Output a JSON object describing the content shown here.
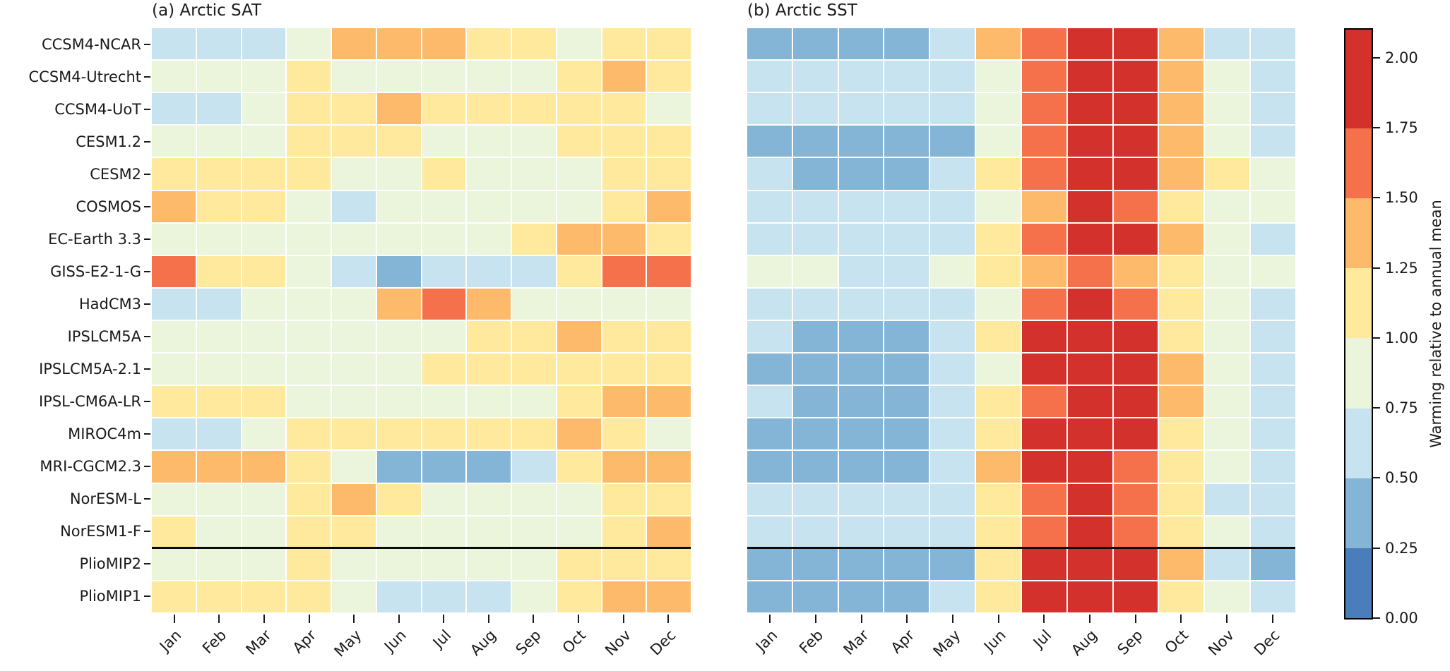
{
  "figure": {
    "panel_a_title": "(a) Arctic SAT",
    "panel_b_title": "(b) Arctic SST",
    "separator_after_row": 16,
    "separator_note": "horizontal black line separates individual models from PlioMIP2/PlioMIP1 ensemble-mean rows",
    "colorbar": {
      "label": "Warming relative to annual mean",
      "tick_labels": [
        "0.00",
        "0.25",
        "0.50",
        "0.75",
        "1.00",
        "1.25",
        "1.50",
        "1.75",
        "2.00"
      ],
      "vmin": 0.0,
      "vmax": 2.1,
      "bins": [
        {
          "max": 0.25,
          "color": "#4a7ebb"
        },
        {
          "max": 0.5,
          "color": "#84b5d7"
        },
        {
          "max": 0.75,
          "color": "#c6e3ef"
        },
        {
          "max": 1.0,
          "color": "#eaf5dc"
        },
        {
          "max": 1.25,
          "color": "#fee99d"
        },
        {
          "max": 1.5,
          "color": "#fdba6b"
        },
        {
          "max": 1.75,
          "color": "#f4714b"
        },
        {
          "max": 2.1,
          "color": "#d3312b"
        }
      ]
    }
  },
  "chart_data": [
    {
      "type": "heatmap",
      "title": "(a) Arctic SAT",
      "columns": [
        "Jan",
        "Feb",
        "Mar",
        "Apr",
        "May",
        "Jun",
        "Jul",
        "Aug",
        "Sep",
        "Oct",
        "Nov",
        "Dec"
      ],
      "rows": [
        "CCSM4-NCAR",
        "CCSM4-Utrecht",
        "CCSM4-UoT",
        "CESM1.2",
        "CESM2",
        "COSMOS",
        "EC-Earth 3.3",
        "GISS-E2-1-G",
        "HadCM3",
        "IPSLCM5A",
        "IPSLCM5A-2.1",
        "IPSL-CM6A-LR",
        "MIROC4m",
        "MRI-CGCM2.3",
        "NorESM-L",
        "NorESM1-F",
        "PlioMIP2",
        "PlioMIP1"
      ],
      "value_units": "warming relative to annual mean (discrete 0.25-wide color bins, bin-center estimates)",
      "values": [
        [
          0.6,
          0.6,
          0.6,
          0.9,
          1.4,
          1.4,
          1.4,
          1.1,
          1.1,
          0.9,
          1.1,
          1.1
        ],
        [
          0.9,
          0.9,
          0.9,
          1.1,
          0.9,
          0.9,
          0.9,
          0.9,
          0.9,
          1.1,
          1.4,
          1.1
        ],
        [
          0.6,
          0.6,
          0.9,
          1.1,
          1.1,
          1.4,
          1.1,
          1.1,
          1.1,
          1.1,
          1.1,
          0.9
        ],
        [
          0.9,
          0.9,
          0.9,
          1.1,
          1.1,
          1.1,
          0.9,
          0.9,
          0.9,
          1.1,
          1.1,
          1.1
        ],
        [
          1.1,
          1.1,
          1.1,
          1.1,
          0.9,
          0.9,
          1.1,
          0.9,
          0.9,
          0.9,
          1.1,
          1.1
        ],
        [
          1.4,
          1.1,
          1.1,
          0.9,
          0.6,
          0.9,
          0.9,
          0.9,
          0.9,
          0.9,
          1.1,
          1.4
        ],
        [
          0.9,
          0.9,
          0.9,
          0.9,
          0.9,
          0.9,
          0.9,
          0.9,
          1.1,
          1.4,
          1.4,
          1.1
        ],
        [
          1.6,
          1.1,
          1.1,
          0.9,
          0.6,
          0.4,
          0.6,
          0.6,
          0.6,
          1.1,
          1.6,
          1.6
        ],
        [
          0.6,
          0.6,
          0.9,
          0.9,
          0.9,
          1.4,
          1.6,
          1.4,
          0.9,
          0.9,
          0.9,
          0.9
        ],
        [
          0.9,
          0.9,
          0.9,
          0.9,
          0.9,
          0.9,
          0.9,
          1.1,
          1.1,
          1.4,
          1.1,
          1.1
        ],
        [
          0.9,
          0.9,
          0.9,
          0.9,
          0.9,
          0.9,
          1.1,
          1.1,
          1.1,
          1.1,
          1.1,
          1.1
        ],
        [
          1.1,
          1.1,
          1.1,
          0.9,
          0.9,
          0.9,
          0.9,
          0.9,
          0.9,
          1.1,
          1.4,
          1.4
        ],
        [
          0.6,
          0.6,
          0.9,
          1.1,
          1.1,
          1.1,
          1.1,
          1.1,
          1.1,
          1.4,
          1.1,
          0.9
        ],
        [
          1.4,
          1.4,
          1.4,
          1.1,
          0.9,
          0.4,
          0.4,
          0.4,
          0.6,
          1.1,
          1.4,
          1.4
        ],
        [
          0.9,
          0.9,
          0.9,
          1.1,
          1.4,
          1.1,
          0.9,
          0.9,
          0.9,
          0.9,
          1.1,
          1.1
        ],
        [
          1.1,
          0.9,
          0.9,
          1.1,
          1.1,
          0.9,
          0.9,
          0.9,
          0.9,
          0.9,
          1.1,
          1.4
        ],
        [
          0.9,
          0.9,
          0.9,
          1.1,
          0.9,
          0.9,
          0.9,
          0.9,
          0.9,
          1.1,
          1.1,
          1.1
        ],
        [
          1.1,
          1.1,
          1.1,
          1.1,
          0.9,
          0.6,
          0.6,
          0.6,
          0.9,
          1.1,
          1.4,
          1.4
        ]
      ]
    },
    {
      "type": "heatmap",
      "title": "(b) Arctic SST",
      "columns": [
        "Jan",
        "Feb",
        "Mar",
        "Apr",
        "May",
        "Jun",
        "Jul",
        "Aug",
        "Sep",
        "Oct",
        "Nov",
        "Dec"
      ],
      "rows": [
        "CCSM4-NCAR",
        "CCSM4-Utrecht",
        "CCSM4-UoT",
        "CESM1.2",
        "CESM2",
        "COSMOS",
        "EC-Earth 3.3",
        "GISS-E2-1-G",
        "HadCM3",
        "IPSLCM5A",
        "IPSLCM5A-2.1",
        "IPSL-CM6A-LR",
        "MIROC4m",
        "MRI-CGCM2.3",
        "NorESM-L",
        "NorESM1-F",
        "PlioMIP2",
        "PlioMIP1"
      ],
      "value_units": "warming relative to annual mean (discrete 0.25-wide color bins, bin-center estimates)",
      "values": [
        [
          0.4,
          0.4,
          0.4,
          0.4,
          0.6,
          1.4,
          1.6,
          1.9,
          1.9,
          1.4,
          0.6,
          0.6
        ],
        [
          0.6,
          0.6,
          0.6,
          0.6,
          0.6,
          0.9,
          1.6,
          1.9,
          1.9,
          1.4,
          0.9,
          0.6
        ],
        [
          0.6,
          0.6,
          0.6,
          0.6,
          0.6,
          0.9,
          1.6,
          1.9,
          1.9,
          1.4,
          0.9,
          0.6
        ],
        [
          0.4,
          0.4,
          0.4,
          0.4,
          0.4,
          0.9,
          1.6,
          1.9,
          1.9,
          1.4,
          0.9,
          0.6
        ],
        [
          0.6,
          0.4,
          0.4,
          0.4,
          0.6,
          1.1,
          1.6,
          1.9,
          1.9,
          1.4,
          1.1,
          0.9
        ],
        [
          0.6,
          0.6,
          0.6,
          0.6,
          0.6,
          0.9,
          1.4,
          1.9,
          1.6,
          1.1,
          0.9,
          0.9
        ],
        [
          0.6,
          0.6,
          0.6,
          0.6,
          0.6,
          1.1,
          1.6,
          1.9,
          1.9,
          1.4,
          0.9,
          0.6
        ],
        [
          0.9,
          0.9,
          0.6,
          0.6,
          0.9,
          1.1,
          1.4,
          1.6,
          1.4,
          1.1,
          0.9,
          0.9
        ],
        [
          0.6,
          0.6,
          0.6,
          0.6,
          0.6,
          0.9,
          1.6,
          1.9,
          1.6,
          1.1,
          0.9,
          0.6
        ],
        [
          0.6,
          0.4,
          0.4,
          0.4,
          0.6,
          1.1,
          1.9,
          1.9,
          1.9,
          1.1,
          0.9,
          0.6
        ],
        [
          0.4,
          0.4,
          0.4,
          0.4,
          0.6,
          0.9,
          1.9,
          1.9,
          1.9,
          1.4,
          0.9,
          0.6
        ],
        [
          0.6,
          0.4,
          0.4,
          0.4,
          0.6,
          1.1,
          1.6,
          1.9,
          1.9,
          1.4,
          0.9,
          0.6
        ],
        [
          0.4,
          0.4,
          0.4,
          0.4,
          0.6,
          1.1,
          1.9,
          1.9,
          1.9,
          1.1,
          0.9,
          0.6
        ],
        [
          0.4,
          0.4,
          0.4,
          0.4,
          0.6,
          1.4,
          1.9,
          1.9,
          1.6,
          1.1,
          0.9,
          0.6
        ],
        [
          0.6,
          0.6,
          0.6,
          0.6,
          0.6,
          1.1,
          1.6,
          1.9,
          1.6,
          1.1,
          0.6,
          0.6
        ],
        [
          0.6,
          0.6,
          0.6,
          0.6,
          0.6,
          1.1,
          1.6,
          1.9,
          1.6,
          1.1,
          0.9,
          0.6
        ],
        [
          0.4,
          0.4,
          0.4,
          0.4,
          0.4,
          1.1,
          1.9,
          1.9,
          1.9,
          1.4,
          0.6,
          0.4
        ],
        [
          0.4,
          0.4,
          0.4,
          0.4,
          0.6,
          1.1,
          1.9,
          1.9,
          1.9,
          1.1,
          0.9,
          0.6
        ]
      ]
    }
  ]
}
